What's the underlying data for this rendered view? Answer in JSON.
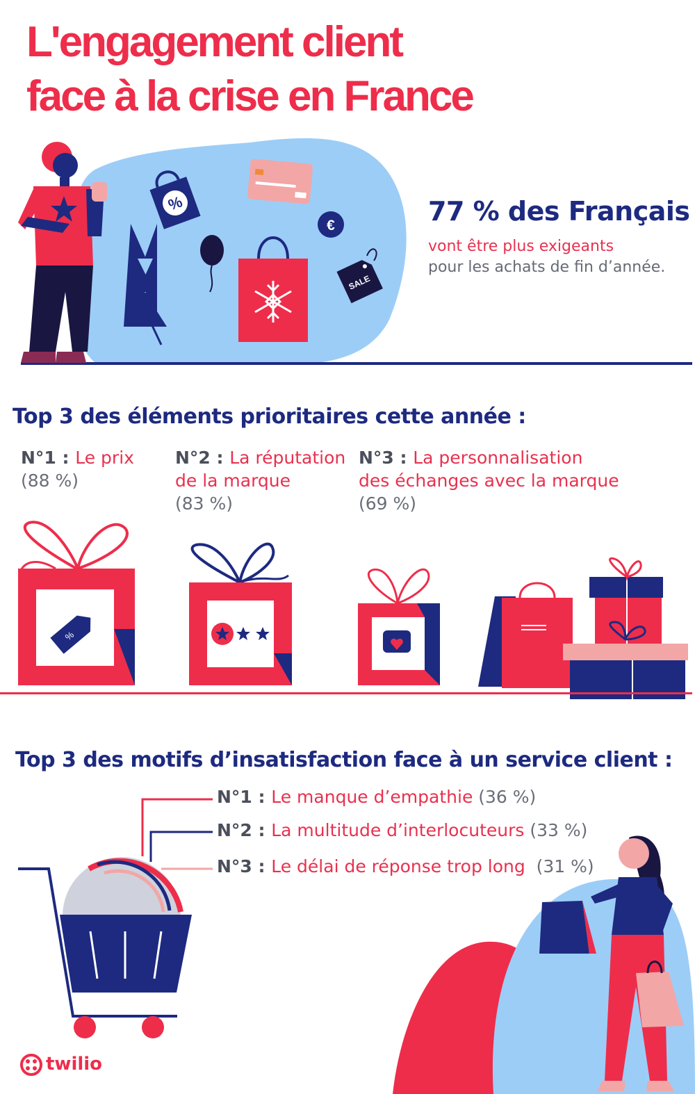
{
  "header": {
    "title_line1": "L'engagement client",
    "title_line2": "face à la crise en France"
  },
  "stat": {
    "headline": "77 % des Français",
    "line1": "vont être plus exigeants",
    "line2": "pour les achats de fin d’année."
  },
  "priorities": {
    "title": "Top 3 des éléments prioritaires cette année :",
    "items": [
      {
        "num": "N°1 : ",
        "label": "Le prix",
        "label2": "",
        "pct": "(88 %)"
      },
      {
        "num": "N°2 : ",
        "label": "La réputation",
        "label2": "de la marque",
        "pct": "(83 %)"
      },
      {
        "num": "N°3 : ",
        "label": "La personnalisation",
        "label2": "des échanges avec la marque",
        "pct": "(69 %)"
      }
    ]
  },
  "dissatisfaction": {
    "title": "Top 3 des motifs d’insatisfaction face à un service client :",
    "items": [
      {
        "num": "N°1 : ",
        "label": "Le manque d’empathie",
        "pct": " (36 %)"
      },
      {
        "num": "N°2 : ",
        "label": "La multitude d’interlocuteurs",
        "pct": " (33 %)"
      },
      {
        "num": "N°3 : ",
        "label": "Le délai de réponse trop long",
        "pct": "  (31 %)"
      }
    ]
  },
  "illustration_labels": {
    "sale_tag": "SALE",
    "discount_symbol": "%",
    "euro_symbol": "€"
  },
  "brand": {
    "name": "twilio"
  },
  "colors": {
    "red": "#ee2d4b",
    "navy": "#1d2a80",
    "light_blue": "#9ccdf7",
    "pink": "#f2a6a6",
    "gray_text": "#666a74"
  }
}
